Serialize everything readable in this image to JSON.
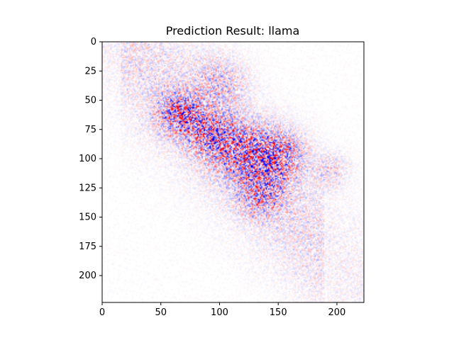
{
  "chart_data": {
    "type": "heatmap",
    "title": "Prediction Result: llama",
    "xlabel": "",
    "ylabel": "",
    "image_size": [
      224,
      224
    ],
    "xlim": [
      0,
      223
    ],
    "ylim": [
      223,
      0
    ],
    "x_ticks": [
      0,
      50,
      100,
      150,
      200
    ],
    "y_ticks": [
      0,
      25,
      50,
      75,
      100,
      125,
      150,
      175,
      200
    ],
    "x_tick_labels": [
      "0",
      "50",
      "100",
      "150",
      "200"
    ],
    "y_tick_labels": [
      "0",
      "25",
      "50",
      "75",
      "100",
      "125",
      "150",
      "175",
      "200"
    ],
    "colormap": "seismic",
    "colors": {
      "negative": "#0000cc",
      "zero": "#ffffff",
      "positive": "#cc0000"
    },
    "grid": false,
    "legend": "none",
    "hotspots": [
      {
        "cx": 66,
        "cy": 62,
        "radius": 12,
        "strength": 1.0
      },
      {
        "cx": 90,
        "cy": 78,
        "radius": 12,
        "strength": 0.8
      },
      {
        "cx": 118,
        "cy": 92,
        "radius": 16,
        "strength": 0.9
      },
      {
        "cx": 150,
        "cy": 97,
        "radius": 14,
        "strength": 1.0
      },
      {
        "cx": 135,
        "cy": 130,
        "radius": 13,
        "strength": 0.7
      },
      {
        "cx": 100,
        "cy": 35,
        "radius": 15,
        "strength": 0.4
      },
      {
        "cx": 195,
        "cy": 110,
        "radius": 10,
        "strength": 0.3
      }
    ]
  }
}
